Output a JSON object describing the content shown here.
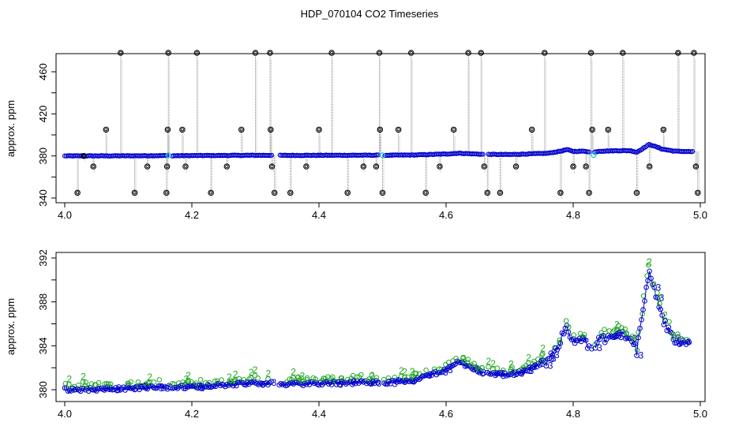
{
  "title": "HDP_070104  CO2 Timeseries",
  "chart_data": [
    {
      "type": "scatter",
      "ylabel": "approx. ppm",
      "xlim": [
        4.0,
        5.0
      ],
      "ylim": [
        340,
        480
      ],
      "xticks": [
        "4.0",
        "4.2",
        "4.4",
        "4.6",
        "4.8",
        "5.0"
      ],
      "yticks": [
        "340",
        "380",
        "420",
        "460"
      ],
      "baseline": [
        [
          4.0,
          380
        ],
        [
          4.1,
          380.1
        ],
        [
          4.16,
          380.3
        ],
        [
          4.17,
          380.2
        ],
        [
          4.3,
          380.6
        ],
        [
          4.33,
          380.6
        ],
        [
          4.34,
          380.5
        ],
        [
          4.49,
          380.7
        ],
        [
          4.5,
          380.6
        ],
        [
          4.55,
          380.9
        ],
        [
          4.6,
          381.8
        ],
        [
          4.62,
          382.6
        ],
        [
          4.64,
          382
        ],
        [
          4.66,
          381.5
        ],
        [
          4.7,
          381.3
        ],
        [
          4.76,
          382.5
        ],
        [
          4.78,
          384.5
        ],
        [
          4.79,
          386
        ],
        [
          4.8,
          384.3
        ],
        [
          4.82,
          384.5
        ],
        [
          4.83,
          383
        ],
        [
          4.84,
          384.5
        ],
        [
          4.87,
          385
        ],
        [
          4.89,
          385
        ],
        [
          4.9,
          383.5
        ],
        [
          4.92,
          391
        ],
        [
          4.94,
          386.5
        ],
        [
          4.96,
          384.5
        ],
        [
          4.99,
          384
        ]
      ],
      "gaps": [
        [
          4.162,
          4.168
        ],
        [
          4.326,
          4.337
        ],
        [
          4.494,
          4.502
        ],
        [
          4.658,
          4.665
        ],
        [
          4.826,
          4.833
        ]
      ],
      "spike_points": [
        [
          4.02,
          345
        ],
        [
          4.03,
          380
        ],
        [
          4.045,
          370
        ],
        [
          4.065,
          405
        ],
        [
          4.088,
          478
        ],
        [
          4.11,
          345
        ],
        [
          4.13,
          370
        ],
        [
          4.16,
          345
        ],
        [
          4.161,
          370
        ],
        [
          4.162,
          405
        ],
        [
          4.163,
          478
        ],
        [
          4.185,
          405
        ],
        [
          4.19,
          370
        ],
        [
          4.208,
          478
        ],
        [
          4.23,
          345
        ],
        [
          4.255,
          370
        ],
        [
          4.278,
          405
        ],
        [
          4.3,
          478
        ],
        [
          4.323,
          478
        ],
        [
          4.324,
          405
        ],
        [
          4.326,
          370
        ],
        [
          4.33,
          345
        ],
        [
          4.355,
          345
        ],
        [
          4.38,
          370
        ],
        [
          4.4,
          405
        ],
        [
          4.42,
          478
        ],
        [
          4.445,
          345
        ],
        [
          4.47,
          370
        ],
        [
          4.49,
          370
        ],
        [
          4.495,
          478
        ],
        [
          4.496,
          405
        ],
        [
          4.5,
          345
        ],
        [
          4.525,
          405
        ],
        [
          4.545,
          478
        ],
        [
          4.568,
          345
        ],
        [
          4.59,
          370
        ],
        [
          4.612,
          405
        ],
        [
          4.635,
          478
        ],
        [
          4.655,
          478
        ],
        [
          4.66,
          370
        ],
        [
          4.665,
          345
        ],
        [
          4.685,
          345
        ],
        [
          4.71,
          370
        ],
        [
          4.735,
          405
        ],
        [
          4.755,
          478
        ],
        [
          4.78,
          345
        ],
        [
          4.8,
          370
        ],
        [
          4.82,
          370
        ],
        [
          4.825,
          345
        ],
        [
          4.828,
          478
        ],
        [
          4.83,
          405
        ],
        [
          4.855,
          405
        ],
        [
          4.878,
          478
        ],
        [
          4.9,
          345
        ],
        [
          4.92,
          370
        ],
        [
          4.942,
          405
        ],
        [
          4.965,
          478
        ],
        [
          4.99,
          478
        ],
        [
          4.993,
          370
        ],
        [
          4.996,
          345
        ]
      ],
      "cyan_points": [
        [
          4.163,
          380.5
        ],
        [
          4.5,
          380.6
        ],
        [
          4.832,
          380.8
        ]
      ]
    },
    {
      "type": "line",
      "ylabel": "approx. ppm",
      "xlim": [
        4.0,
        5.0
      ],
      "ylim": [
        379.5,
        392.5
      ],
      "xticks": [
        "4.0",
        "4.2",
        "4.4",
        "4.6",
        "4.8",
        "5.0"
      ],
      "yticks": [
        "380",
        "384",
        "388",
        "392"
      ],
      "series": [
        {
          "label_char": "3",
          "color": "#0000cc"
        },
        {
          "label_char": "2",
          "color": "#22aa22"
        }
      ]
    }
  ]
}
